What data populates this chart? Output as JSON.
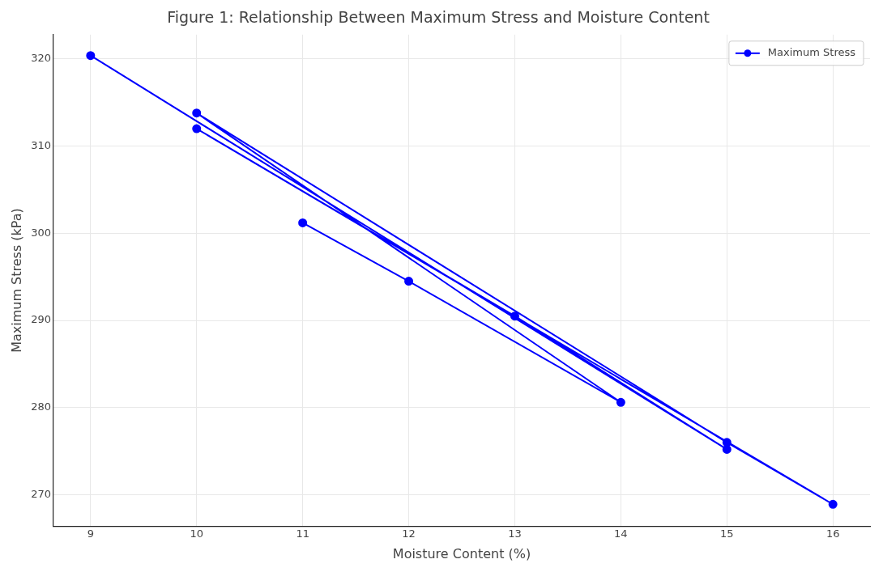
{
  "chart_data": {
    "type": "line",
    "title": "Figure 1: Relationship Between Maximum Stress and Moisture Content",
    "xlabel": "Moisture Content (%)",
    "ylabel": "Maximum Stress (kPa)",
    "x": [
      11,
      12,
      14,
      10,
      15,
      16,
      10,
      13,
      15,
      9
    ],
    "series": [
      {
        "name": "Maximum Stress",
        "color": "#0000ff",
        "values": [
          301.2,
          294.5,
          280.6,
          313.8,
          276,
          268.9,
          312,
          290.5,
          275.2,
          320.4
        ]
      }
    ],
    "xlim": [
      8.65,
      16.35
    ],
    "ylim": [
      266.4,
      322.8
    ],
    "xticks": [
      9,
      10,
      11,
      12,
      13,
      14,
      15,
      16
    ],
    "yticks": [
      270,
      280,
      290,
      300,
      310,
      320
    ],
    "grid": true,
    "legend": "top right",
    "marker": "circle",
    "line_style": "solid"
  }
}
